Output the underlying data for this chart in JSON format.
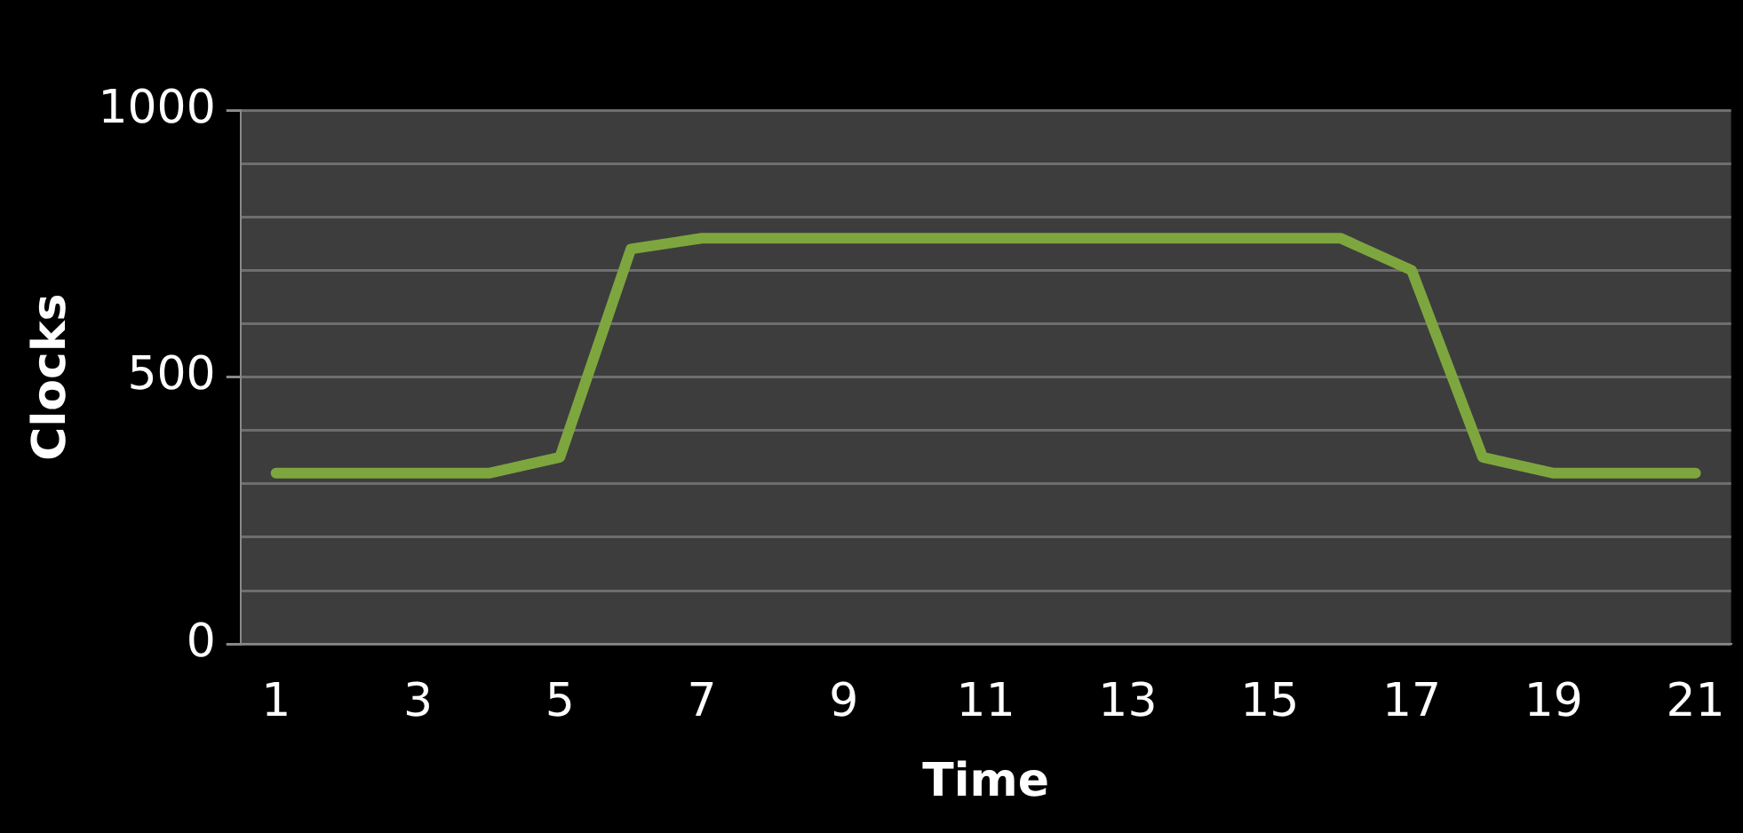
{
  "chart_data": {
    "type": "line",
    "xlabel": "Time",
    "ylabel": "Clocks",
    "x": [
      1,
      2,
      3,
      4,
      5,
      6,
      7,
      8,
      9,
      10,
      11,
      12,
      13,
      14,
      15,
      16,
      17,
      18,
      19,
      20,
      21
    ],
    "xlim": [
      0.5,
      21.5
    ],
    "xticks": [
      1,
      3,
      5,
      7,
      9,
      11,
      13,
      15,
      17,
      19,
      21
    ],
    "series": [
      {
        "color": "#7ea63e",
        "values": [
          320,
          320,
          320,
          320,
          350,
          740,
          760,
          760,
          760,
          760,
          760,
          760,
          760,
          760,
          760,
          760,
          700,
          350,
          320,
          320,
          320
        ]
      }
    ],
    "ylim": [
      0,
      1000
    ],
    "yticks": [
      0,
      {
        "value": 100,
        "label": null
      },
      {
        "value": 200,
        "label": null
      },
      {
        "value": 300,
        "label": null
      },
      {
        "value": 400,
        "label": null
      },
      500,
      {
        "value": 600,
        "label": null
      },
      {
        "value": 700,
        "label": null
      },
      {
        "value": 800,
        "label": null
      },
      {
        "value": 900,
        "label": null
      },
      1000
    ],
    "grid": "y",
    "legend": false,
    "marker": "none",
    "line_style": "solid"
  }
}
